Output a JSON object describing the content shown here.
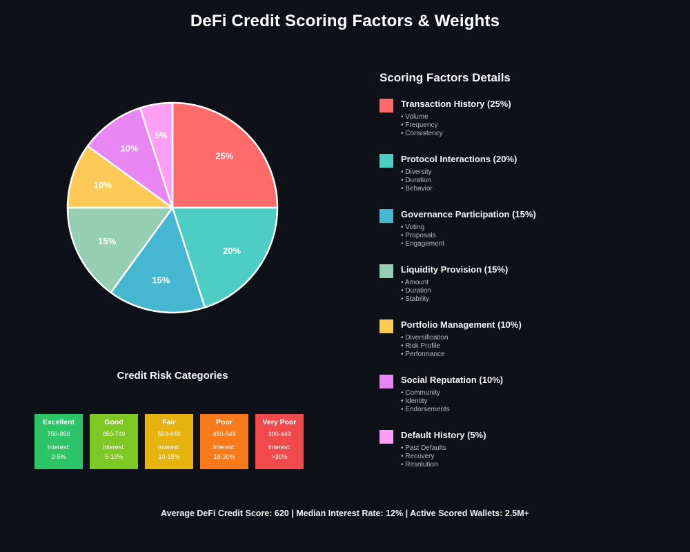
{
  "page": {
    "title": "DeFi Credit Scoring Factors & Weights",
    "footer": "Average DeFi Credit Score: 620 | Median Interest Rate: 12% | Active Scored Wallets: 2.5M+",
    "background_color": "#0E1117"
  },
  "chart_data": {
    "type": "pie",
    "title": "DeFi Credit Scoring Factors & Weights",
    "start_angle": "12 o'clock, clockwise",
    "legend_position": "right panel",
    "slices": [
      {
        "label": "Transaction History",
        "value": 25,
        "display": "25%",
        "color": "#FF6B6B"
      },
      {
        "label": "Protocol Interactions",
        "value": 20,
        "display": "20%",
        "color": "#4ECDC4"
      },
      {
        "label": "Governance Participation",
        "value": 15,
        "display": "15%",
        "color": "#45B7D1"
      },
      {
        "label": "Liquidity Provision",
        "value": 15,
        "display": "15%",
        "color": "#96CEB4"
      },
      {
        "label": "Portfolio Management",
        "value": 10,
        "display": "10%",
        "color": "#FECA57"
      },
      {
        "label": "Social Reputation",
        "value": 10,
        "display": "10%",
        "color": "#EA86F3"
      },
      {
        "label": "Default History",
        "value": 5,
        "display": "5%",
        "color": "#FF9FF3"
      }
    ]
  },
  "details": {
    "heading": "Scoring Factors Details",
    "factors": [
      {
        "title": "Transaction History (25%)",
        "color": "#FF6B6B",
        "bullets": [
          "• Volume",
          "• Frequency",
          "• Consistency"
        ]
      },
      {
        "title": "Protocol Interactions (20%)",
        "color": "#4ECDC4",
        "bullets": [
          "• Diversity",
          "• Duration",
          "• Behavior"
        ]
      },
      {
        "title": "Governance Participation (15%)",
        "color": "#45B7D1",
        "bullets": [
          "• Voting",
          "• Proposals",
          "• Engagement"
        ]
      },
      {
        "title": "Liquidity Provision (15%)",
        "color": "#96CEB4",
        "bullets": [
          "• Amount",
          "• Duration",
          "• Stability"
        ]
      },
      {
        "title": "Portfolio Management (10%)",
        "color": "#FECA57",
        "bullets": [
          "• Diversification",
          "• Risk Profile",
          "• Performance"
        ]
      },
      {
        "title": "Social Reputation (10%)",
        "color": "#EA86F3",
        "bullets": [
          "• Community",
          "• Identity",
          "• Endorsements"
        ]
      },
      {
        "title": "Default History (5%)",
        "color": "#FF9FF3",
        "bullets": [
          "• Past Defaults",
          "• Recovery",
          "• Resolution"
        ]
      }
    ]
  },
  "risk": {
    "heading": "Credit Risk Categories",
    "categories": [
      {
        "label": "Excellent",
        "range": "750-850",
        "interest_label": "Interest:",
        "interest": "2-5%",
        "color": "#2BC467"
      },
      {
        "label": "Good",
        "range": "650-749",
        "interest_label": "Interest:",
        "interest": "5-10%",
        "color": "#7DC823"
      },
      {
        "label": "Fair",
        "range": "550-649",
        "interest_label": "Interest:",
        "interest": "10-18%",
        "color": "#E5B20E"
      },
      {
        "label": "Poor",
        "range": "450-549",
        "interest_label": "Interest:",
        "interest": "18-30%",
        "color": "#F87A1A"
      },
      {
        "label": "Very Poor",
        "range": "300-449",
        "interest_label": "Interest:",
        "interest": ">30%",
        "color": "#F04A4A"
      }
    ]
  }
}
